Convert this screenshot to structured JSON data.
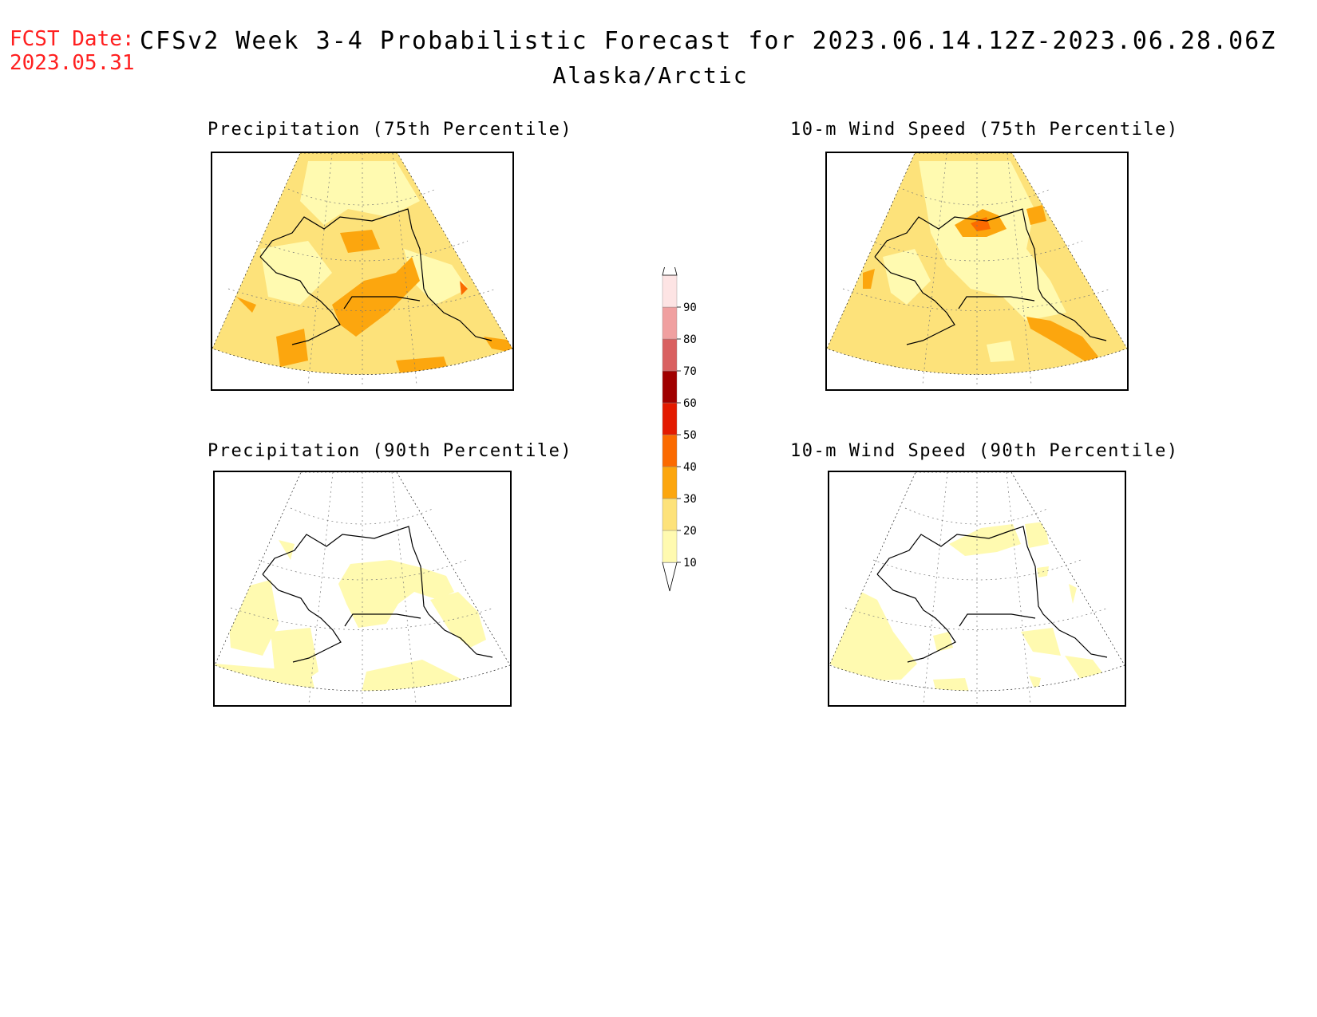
{
  "header": {
    "fcst_date_label": "FCST Date:",
    "fcst_date_value": "2023.05.31",
    "title": "CFSv2 Week 3-4 Probabilistic Forecast for 2023.06.14.12Z-2023.06.28.06Z",
    "region": "Alaska/Arctic"
  },
  "panels": [
    {
      "title": "Precipitation (75th Percentile)"
    },
    {
      "title": "10-m Wind Speed (75th Percentile)"
    },
    {
      "title": "Precipitation (90th Percentile)"
    },
    {
      "title": "10-m Wind Speed (90th Percentile)"
    }
  ],
  "colorbar": {
    "levels": [
      "10",
      "20",
      "30",
      "40",
      "50",
      "60",
      "70",
      "80",
      "90"
    ],
    "colors": [
      "#fffab0",
      "#fde27a",
      "#fca60e",
      "#fb6a00",
      "#e31a00",
      "#a00000",
      "#d96060",
      "#f0a0a0",
      "#fde4e4"
    ]
  }
}
